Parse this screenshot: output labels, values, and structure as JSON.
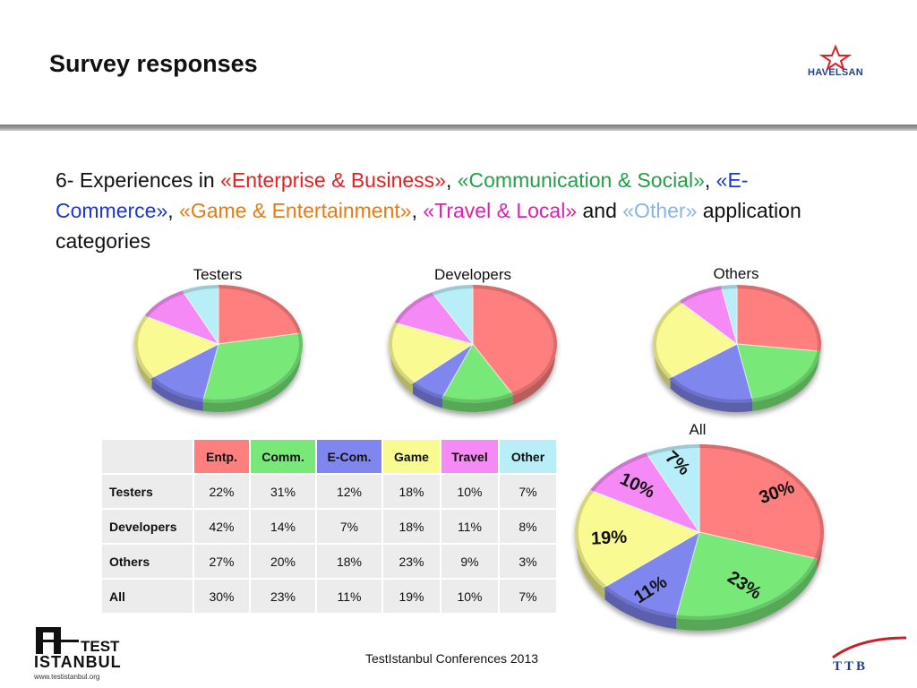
{
  "title": "Survey responses",
  "question": {
    "p1": "6- Experiences in ",
    "entp": "«Enterprise & Business»",
    "sep1": ", ",
    "comm": "«Communication & Social»",
    "sep2": ", ",
    "ecom": "«E-Commerce»",
    "sep3": ", ",
    "game": "«Game & Entertainment»",
    "sep4": ", ",
    "travel": "«Travel & Local»",
    "and": " and ",
    "other": "«Other»",
    "tail": " application categories"
  },
  "logos": {
    "havelsan": "HAVELSAN",
    "testistanbul": "ISTANBUL",
    "test": "TEST",
    "testistanbul_url": "www.testistanbul.org",
    "ttb": "TTB"
  },
  "footer": "TestIstanbul Conferences 2013",
  "colors": {
    "Entp.": "#ff7f7f",
    "Comm.": "#78e878",
    "E-Com.": "#7f86ee",
    "Game": "#fafa92",
    "Travel": "#f589f5",
    "Other": "#b8eef8"
  },
  "chart_data": [
    {
      "type": "pie",
      "title": "Testers",
      "labels": [
        "Entp.",
        "Comm.",
        "E-Com.",
        "Game",
        "Travel",
        "Other"
      ],
      "values": [
        22,
        31,
        12,
        18,
        10,
        7
      ]
    },
    {
      "type": "pie",
      "title": "Developers",
      "labels": [
        "Entp.",
        "Comm.",
        "E-Com.",
        "Game",
        "Travel",
        "Other"
      ],
      "values": [
        42,
        14,
        7,
        18,
        11,
        8
      ]
    },
    {
      "type": "pie",
      "title": "Others",
      "labels": [
        "Entp.",
        "Comm.",
        "E-Com.",
        "Game",
        "Travel",
        "Other"
      ],
      "values": [
        27,
        20,
        18,
        23,
        9,
        3
      ]
    },
    {
      "type": "pie",
      "title": "All",
      "labels": [
        "Entp.",
        "Comm.",
        "E-Com.",
        "Game",
        "Travel",
        "Other"
      ],
      "values": [
        30,
        23,
        11,
        19,
        10,
        7
      ],
      "data_labels": [
        "30%",
        "23%",
        "11%",
        "19%",
        "10%",
        "7%"
      ]
    },
    {
      "type": "table",
      "columns": [
        "Entp.",
        "Comm.",
        "E-Com.",
        "Game",
        "Travel",
        "Other"
      ],
      "rows": [
        {
          "label": "Testers",
          "values": [
            "22%",
            "31%",
            "12%",
            "18%",
            "10%",
            "7%"
          ]
        },
        {
          "label": "Developers",
          "values": [
            "42%",
            "14%",
            "7%",
            "18%",
            "11%",
            "8%"
          ]
        },
        {
          "label": "Others",
          "values": [
            "27%",
            "20%",
            "18%",
            "23%",
            "9%",
            "3%"
          ]
        },
        {
          "label": "All",
          "values": [
            "30%",
            "23%",
            "11%",
            "19%",
            "10%",
            "7%"
          ]
        }
      ]
    }
  ]
}
